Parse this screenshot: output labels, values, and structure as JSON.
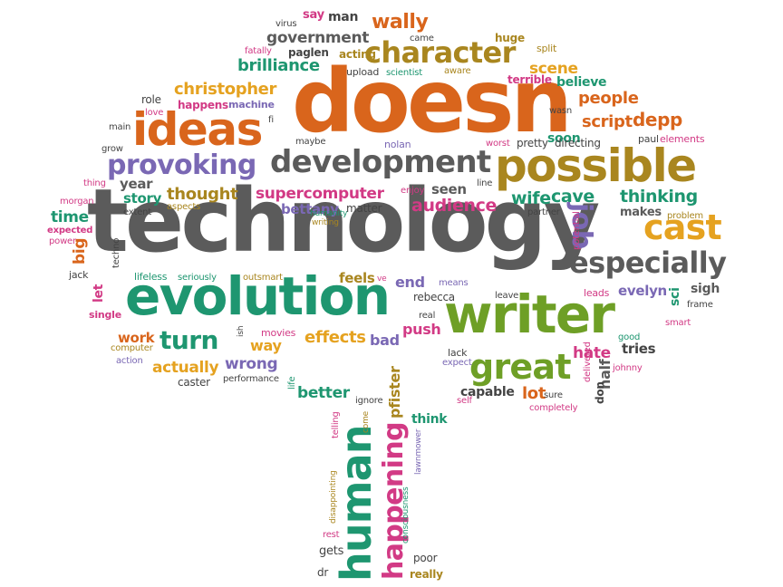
{
  "colors": {
    "orange": "#d9651c",
    "gray": "#5b5b5b",
    "green": "#6e9f26",
    "teal": "#1e9670",
    "purple": "#7a68b4",
    "pink": "#d23a85",
    "yellow": "#e5a220",
    "olive": "#a9861f"
  },
  "words": {
    "technology": "technology",
    "doesn": "doesn",
    "evolution": "evolution",
    "writer": "writer",
    "possible": "possible",
    "ideas": "ideas",
    "development": "development",
    "character": "character",
    "especially": "especially",
    "cast": "cast",
    "great": "great",
    "provoking": "provoking",
    "human": "human",
    "happening": "happening",
    "job": "job",
    "turn": "turn",
    "christopher": "christopher",
    "brilliance": "brilliance",
    "government": "government",
    "wally": "wally",
    "supercomputer": "supercomputer",
    "audience": "audience",
    "thinking": "thinking",
    "bettany": "bettany",
    "thought": "thought",
    "effects": "effects",
    "script": "script",
    "depp": "depp",
    "people": "people",
    "scene": "scene",
    "believe": "believe",
    "wife": "wife",
    "cave": "cave",
    "makes": "makes",
    "actually": "actually",
    "wrong": "wrong",
    "better": "better",
    "work": "work",
    "way": "way",
    "bad": "bad",
    "push": "push",
    "time": "time",
    "big": "big",
    "story": "story",
    "year": "year",
    "seen": "seen",
    "feels": "feels",
    "end": "end",
    "rebecca": "rebecca",
    "lot": "lot",
    "capable": "capable",
    "hate": "hate",
    "half": "half",
    "tries": "tries",
    "evelyn": "evelyn",
    "sigh": "sigh",
    "sci": "sci",
    "soon": "soon",
    "pretty": "pretty",
    "directing": "directing",
    "paul": "paul",
    "elements": "elements",
    "say": "say",
    "man": "man",
    "acting": "acting",
    "paglen": "paglen",
    "upload": "upload",
    "huge": "huge",
    "split": "split",
    "terrible": "terrible",
    "role": "role",
    "happens": "happens",
    "machine": "machine",
    "matter": "matter",
    "enjoy": "enjoy",
    "nolan": "nolan",
    "worst": "worst",
    "think": "think",
    "pfister": "pfister",
    "poor": "poor",
    "really": "really",
    "gets": "gets",
    "dr": "dr",
    "rest": "rest",
    "movies": "movies",
    "lifeless": "lifeless",
    "seriously": "seriously",
    "outsmart": "outsmart",
    "jack": "jack",
    "let": "let",
    "single": "single",
    "computer": "computer",
    "action": "action",
    "caster": "caster",
    "performance": "performance",
    "expected": "expected",
    "power": "power",
    "morgan": "morgan",
    "extent": "extent",
    "aspects": "aspects",
    "thing": "thing",
    "grow": "grow",
    "main": "main",
    "love": "love",
    "fatally": "fatally",
    "virus": "virus",
    "came": "came",
    "scientist": "scientist",
    "aware": "aware",
    "wasn": "wasn",
    "fi": "fi",
    "maybe": "maybe",
    "line": "line",
    "partner": "partner",
    "potential": "potential",
    "problem": "problem",
    "means": "means",
    "leave": "leave",
    "leads": "leads",
    "frame": "frame",
    "smart": "smart",
    "good": "good",
    "johnny": "johnny",
    "delivered": "delivered",
    "lack": "lack",
    "expect": "expect",
    "self": "self",
    "sure": "sure",
    "completely": "completely",
    "don": "don",
    "ignore": "ignore",
    "real": "real",
    "humanity": "humanity",
    "writing": "writing",
    "techno": "techno",
    "life": "life",
    "ish": "ish",
    "telling": "telling",
    "come": "come",
    "disappointing": "disappointing",
    "consciousness": "consciousness",
    "lawnmower": "lawnmower",
    "ve": "ve"
  }
}
